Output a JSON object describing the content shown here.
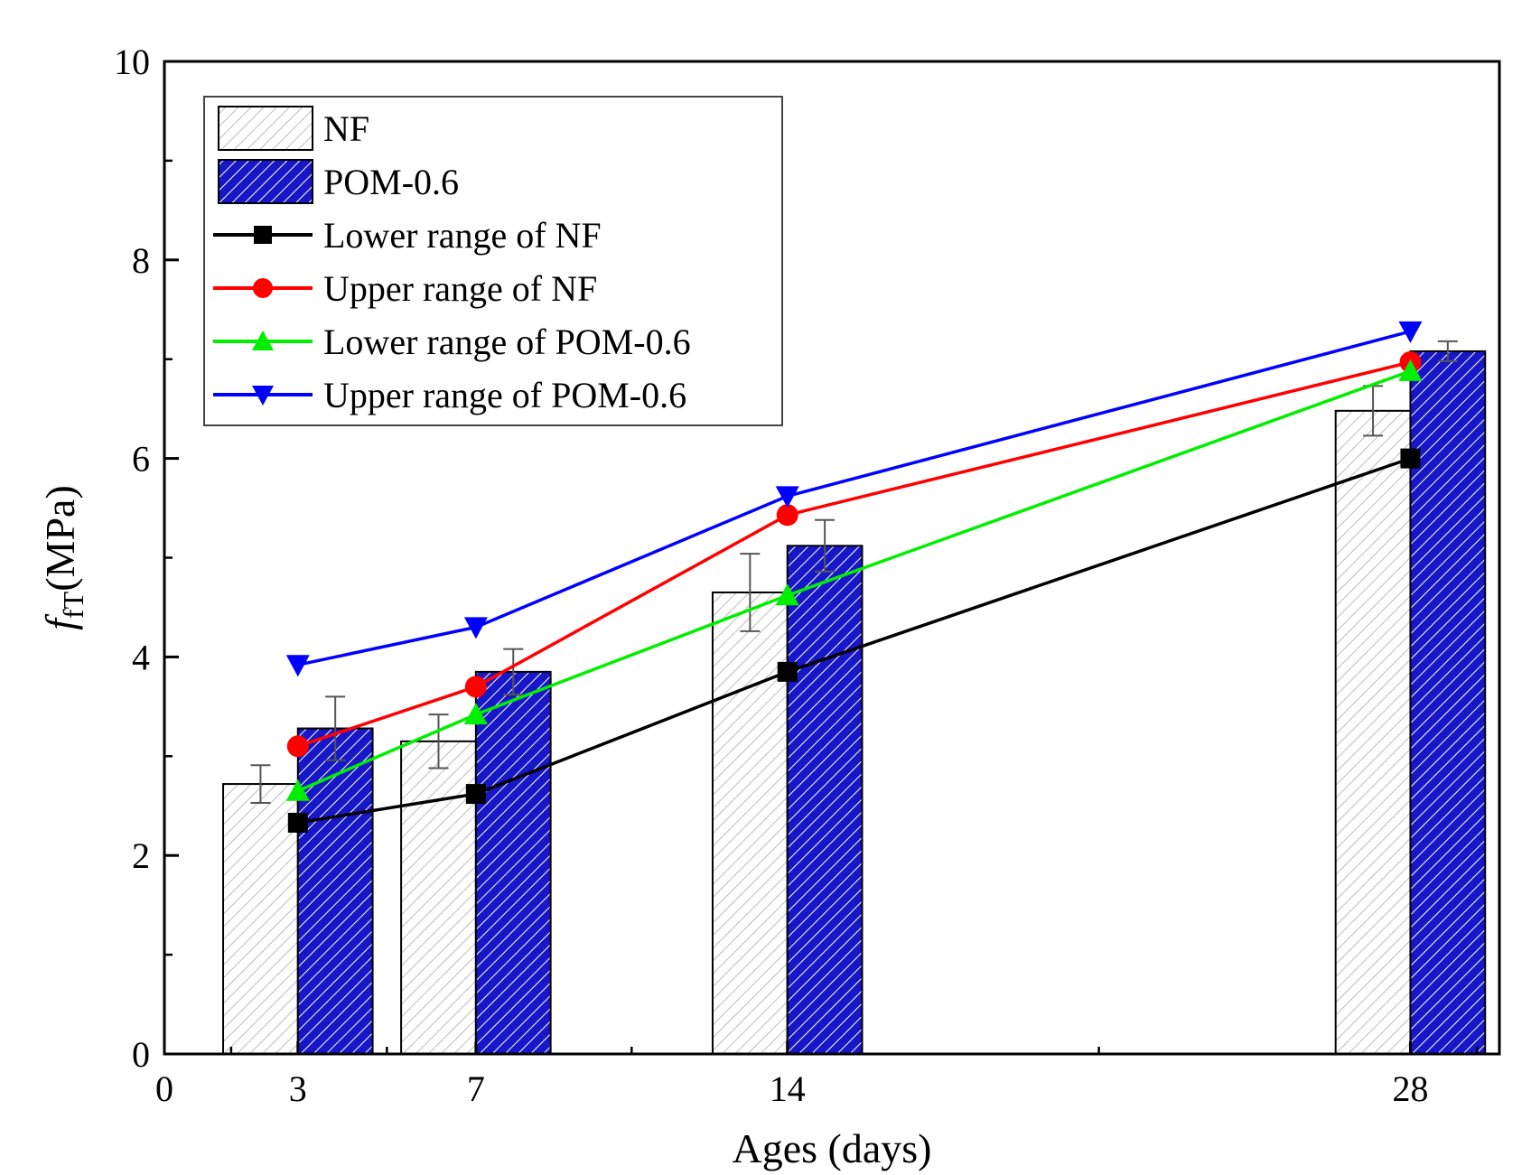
{
  "chart_data": {
    "type": "bar",
    "xlabel": "Ages (days)",
    "ylabel": {
      "main": "f",
      "sub": "fT",
      "unit": "(MPa)"
    },
    "xlim": [
      0,
      30
    ],
    "ylim": [
      0,
      10
    ],
    "x_ticks": [
      0,
      3,
      7,
      14,
      28
    ],
    "x_ticks_minor": [
      1.5,
      5,
      10.5,
      21,
      29.5
    ],
    "y_ticks": [
      0,
      2,
      4,
      6,
      8,
      10
    ],
    "y_ticks_minor": [
      1,
      3,
      5,
      7,
      9
    ],
    "x": [
      3,
      7,
      14,
      28
    ],
    "bar_series": [
      {
        "name": "NF",
        "values": [
          2.72,
          3.15,
          4.65,
          6.48
        ],
        "errors": [
          0.19,
          0.27,
          0.39,
          0.25
        ],
        "offset": -1,
        "fill": "#ffffff",
        "hatch": "#bdbdbd"
      },
      {
        "name": "POM-0.6",
        "values": [
          3.28,
          3.85,
          5.12,
          7.08
        ],
        "errors": [
          0.32,
          0.23,
          0.26,
          0.1
        ],
        "offset": 1,
        "fill": "#1717c8",
        "hatch": "#ffffff"
      }
    ],
    "line_series": [
      {
        "name": "Lower range of NF",
        "values": [
          2.33,
          2.62,
          3.85,
          6.0
        ],
        "color": "#000000",
        "marker": "square"
      },
      {
        "name": "Upper range of NF",
        "values": [
          3.1,
          3.7,
          5.43,
          6.97
        ],
        "color": "#ff0000",
        "marker": "circle"
      },
      {
        "name": "Lower range of POM-0.6",
        "values": [
          2.65,
          3.42,
          4.62,
          6.88
        ],
        "color": "#00ee00",
        "marker": "triangle-up"
      },
      {
        "name": "Upper range of POM-0.6",
        "values": [
          3.92,
          4.3,
          5.62,
          7.28
        ],
        "color": "#0000ff",
        "marker": "triangle-down"
      }
    ],
    "legend_position": "top-left"
  }
}
